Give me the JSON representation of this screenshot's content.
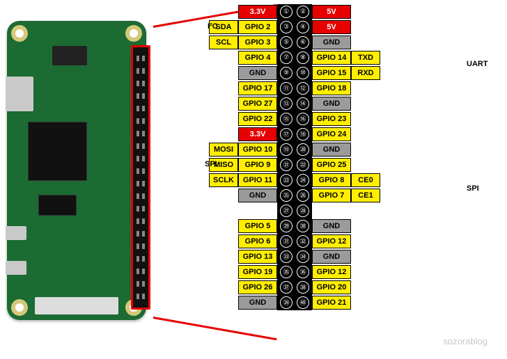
{
  "colors": {
    "power33": "#e60000",
    "power5": "#e60000",
    "gpio": "#ffee00",
    "gnd": "#9b9b9b",
    "alt": "#ffee00",
    "numStrip": "#000000",
    "text_black": "#000000",
    "text_white": "#ffffff"
  },
  "buses": {
    "i2c": "I²C",
    "spi_left": "SPI",
    "uart": "UART",
    "spi_right": "SPI"
  },
  "rows": [
    {
      "l_alt": "",
      "l_alt_bg": "",
      "l": "3.3V",
      "l_bg": "power33",
      "l_fg": "text_white",
      "n1": "①",
      "n2": "②",
      "r": "5V",
      "r_bg": "power5",
      "r_fg": "text_white",
      "r_alt": "",
      "r_alt_bg": ""
    },
    {
      "l_alt": "SDA",
      "l_alt_bg": "alt",
      "l": "GPIO 2",
      "l_bg": "gpio",
      "l_fg": "text_black",
      "n1": "③",
      "n2": "④",
      "r": "5V",
      "r_bg": "power5",
      "r_fg": "text_white",
      "r_alt": "",
      "r_alt_bg": ""
    },
    {
      "l_alt": "SCL",
      "l_alt_bg": "alt",
      "l": "GPIO 3",
      "l_bg": "gpio",
      "l_fg": "text_black",
      "n1": "⑤",
      "n2": "⑥",
      "r": "GND",
      "r_bg": "gnd",
      "r_fg": "text_black",
      "r_alt": "",
      "r_alt_bg": ""
    },
    {
      "l_alt": "",
      "l_alt_bg": "",
      "l": "GPIO 4",
      "l_bg": "gpio",
      "l_fg": "text_black",
      "n1": "⑦",
      "n2": "⑧",
      "r": "GPIO 14",
      "r_bg": "gpio",
      "r_fg": "text_black",
      "r_alt": "TXD",
      "r_alt_bg": "alt"
    },
    {
      "l_alt": "",
      "l_alt_bg": "",
      "l": "GND",
      "l_bg": "gnd",
      "l_fg": "text_black",
      "n1": "⑨",
      "n2": "⑩",
      "r": "GPIO 15",
      "r_bg": "gpio",
      "r_fg": "text_black",
      "r_alt": "RXD",
      "r_alt_bg": "alt"
    },
    {
      "l_alt": "",
      "l_alt_bg": "",
      "l": "GPIO 17",
      "l_bg": "gpio",
      "l_fg": "text_black",
      "n1": "⑪",
      "n2": "⑫",
      "r": "GPIO 18",
      "r_bg": "gpio",
      "r_fg": "text_black",
      "r_alt": "",
      "r_alt_bg": ""
    },
    {
      "l_alt": "",
      "l_alt_bg": "",
      "l": "GPIO 27",
      "l_bg": "gpio",
      "l_fg": "text_black",
      "n1": "⑬",
      "n2": "⑭",
      "r": "GND",
      "r_bg": "gnd",
      "r_fg": "text_black",
      "r_alt": "",
      "r_alt_bg": ""
    },
    {
      "l_alt": "",
      "l_alt_bg": "",
      "l": "GPIO 22",
      "l_bg": "gpio",
      "l_fg": "text_black",
      "n1": "⑮",
      "n2": "⑯",
      "r": "GPIO 23",
      "r_bg": "gpio",
      "r_fg": "text_black",
      "r_alt": "",
      "r_alt_bg": ""
    },
    {
      "l_alt": "",
      "l_alt_bg": "",
      "l": "3.3V",
      "l_bg": "power33",
      "l_fg": "text_white",
      "n1": "⑰",
      "n2": "⑱",
      "r": "GPIO 24",
      "r_bg": "gpio",
      "r_fg": "text_black",
      "r_alt": "",
      "r_alt_bg": ""
    },
    {
      "l_alt": "MOSI",
      "l_alt_bg": "alt",
      "l": "GPIO 10",
      "l_bg": "gpio",
      "l_fg": "text_black",
      "n1": "⑲",
      "n2": "⑳",
      "r": "GND",
      "r_bg": "gnd",
      "r_fg": "text_black",
      "r_alt": "",
      "r_alt_bg": ""
    },
    {
      "l_alt": "MISO",
      "l_alt_bg": "alt",
      "l": "GPIO  9",
      "l_bg": "gpio",
      "l_fg": "text_black",
      "n1": "㉑",
      "n2": "㉒",
      "r": "GPIO 25",
      "r_bg": "gpio",
      "r_fg": "text_black",
      "r_alt": "",
      "r_alt_bg": ""
    },
    {
      "l_alt": "SCLK",
      "l_alt_bg": "alt",
      "l": "GPIO 11",
      "l_bg": "gpio",
      "l_fg": "text_black",
      "n1": "㉓",
      "n2": "㉔",
      "r": "GPIO 8",
      "r_bg": "gpio",
      "r_fg": "text_black",
      "r_alt": "CE0",
      "r_alt_bg": "alt"
    },
    {
      "l_alt": "",
      "l_alt_bg": "",
      "l": "GND",
      "l_bg": "gnd",
      "l_fg": "text_black",
      "n1": "㉕",
      "n2": "㉖",
      "r": "GPIO 7",
      "r_bg": "gpio",
      "r_fg": "text_black",
      "r_alt": "CE1",
      "r_alt_bg": "alt"
    },
    {
      "spacer": true,
      "n1": "㉗",
      "n2": "㉘"
    },
    {
      "l_alt": "",
      "l_alt_bg": "",
      "l": "GPIO 5",
      "l_bg": "gpio",
      "l_fg": "text_black",
      "n1": "㉙",
      "n2": "㉚",
      "r": "GND",
      "r_bg": "gnd",
      "r_fg": "text_black",
      "r_alt": "",
      "r_alt_bg": ""
    },
    {
      "l_alt": "",
      "l_alt_bg": "",
      "l": "GPIO 6",
      "l_bg": "gpio",
      "l_fg": "text_black",
      "n1": "㉛",
      "n2": "㉜",
      "r": "GPIO 12",
      "r_bg": "gpio",
      "r_fg": "text_black",
      "r_alt": "",
      "r_alt_bg": ""
    },
    {
      "l_alt": "",
      "l_alt_bg": "",
      "l": "GPIO 13",
      "l_bg": "gpio",
      "l_fg": "text_black",
      "n1": "㉝",
      "n2": "㉞",
      "r": "GND",
      "r_bg": "gnd",
      "r_fg": "text_black",
      "r_alt": "",
      "r_alt_bg": ""
    },
    {
      "l_alt": "",
      "l_alt_bg": "",
      "l": "GPIO 19",
      "l_bg": "gpio",
      "l_fg": "text_black",
      "n1": "㉟",
      "n2": "㊱",
      "r": "GPIO 12",
      "r_bg": "gpio",
      "r_fg": "text_black",
      "r_alt": "",
      "r_alt_bg": ""
    },
    {
      "l_alt": "",
      "l_alt_bg": "",
      "l": "GPIO 26",
      "l_bg": "gpio",
      "l_fg": "text_black",
      "n1": "㊲",
      "n2": "㊳",
      "r": "GPIO 20",
      "r_bg": "gpio",
      "r_fg": "text_black",
      "r_alt": "",
      "r_alt_bg": ""
    },
    {
      "l_alt": "",
      "l_alt_bg": "",
      "l": "GND",
      "l_bg": "gnd",
      "l_fg": "text_black",
      "n1": "㊴",
      "n2": "㊵",
      "r": "GPIO 21",
      "r_bg": "gpio",
      "r_fg": "text_black",
      "r_alt": "",
      "r_alt_bg": ""
    }
  ],
  "watermark": "sozorablog"
}
